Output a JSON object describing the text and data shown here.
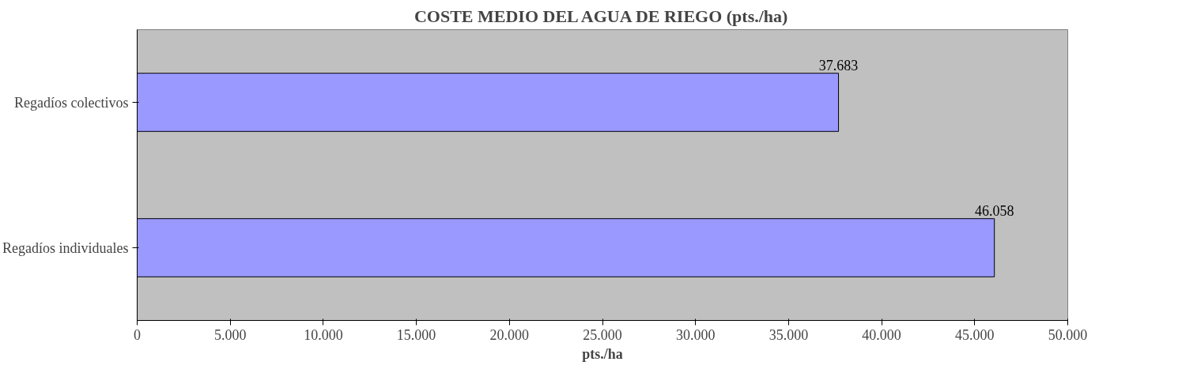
{
  "chart_data": {
    "type": "bar",
    "orientation": "horizontal",
    "title": "COSTE MEDIO DEL AGUA DE RIEGO (pts./ha)",
    "xlabel": "pts./ha",
    "categories": [
      "Regadíos colectivos",
      "Regadíos individuales"
    ],
    "values": [
      37683,
      46058
    ],
    "value_labels": [
      "37.683",
      "46.058"
    ],
    "color": "#9999ff",
    "xlim": [
      0,
      50000
    ],
    "xticks": [
      0,
      {
        "value": 5000,
        "label": "5.000"
      },
      {
        "value": 10000,
        "label": "10.000"
      },
      {
        "value": 15000,
        "label": "15.000"
      },
      {
        "value": 20000,
        "label": "20.000"
      },
      {
        "value": 25000,
        "label": "25.000"
      },
      {
        "value": 30000,
        "label": "30.000"
      },
      {
        "value": 35000,
        "label": "35.000"
      },
      {
        "value": 40000,
        "label": "40.000"
      },
      {
        "value": 45000,
        "label": "45.000"
      },
      {
        "value": 50000,
        "label": "50.000"
      }
    ],
    "grid": false
  }
}
